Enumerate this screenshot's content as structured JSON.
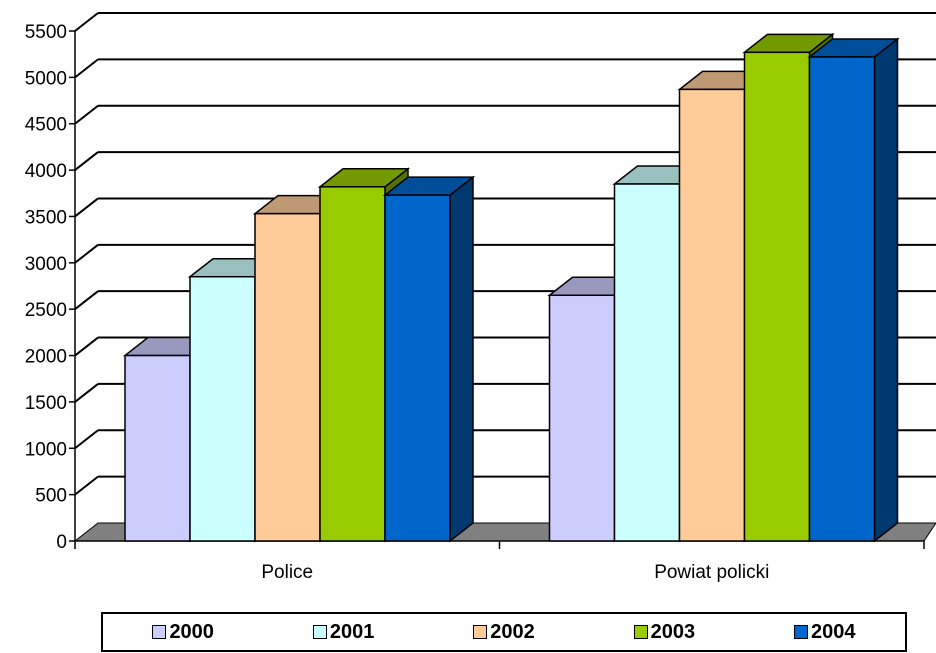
{
  "chart_data": {
    "type": "bar",
    "style": "3d-clustered-column",
    "categories": [
      "Police",
      "Powiat policki"
    ],
    "series": [
      {
        "name": "2000",
        "values": [
          2000,
          2650
        ],
        "color": "#CCCCFF"
      },
      {
        "name": "2001",
        "values": [
          2850,
          3850
        ],
        "color": "#CCFFFF"
      },
      {
        "name": "2002",
        "values": [
          3530,
          4870
        ],
        "color": "#FFCC99"
      },
      {
        "name": "2003",
        "values": [
          3820,
          5270
        ],
        "color": "#99CC00"
      },
      {
        "name": "2004",
        "values": [
          3730,
          5220
        ],
        "color": "#0066CC"
      }
    ],
    "yticks": [
      "0",
      "500",
      "1000",
      "1500",
      "2000",
      "2500",
      "3000",
      "3500",
      "4000",
      "4500",
      "5000",
      "5500"
    ],
    "ylim": [
      0,
      5500
    ],
    "grid": true,
    "legend_position": "bottom",
    "floor_color": "#808080"
  }
}
